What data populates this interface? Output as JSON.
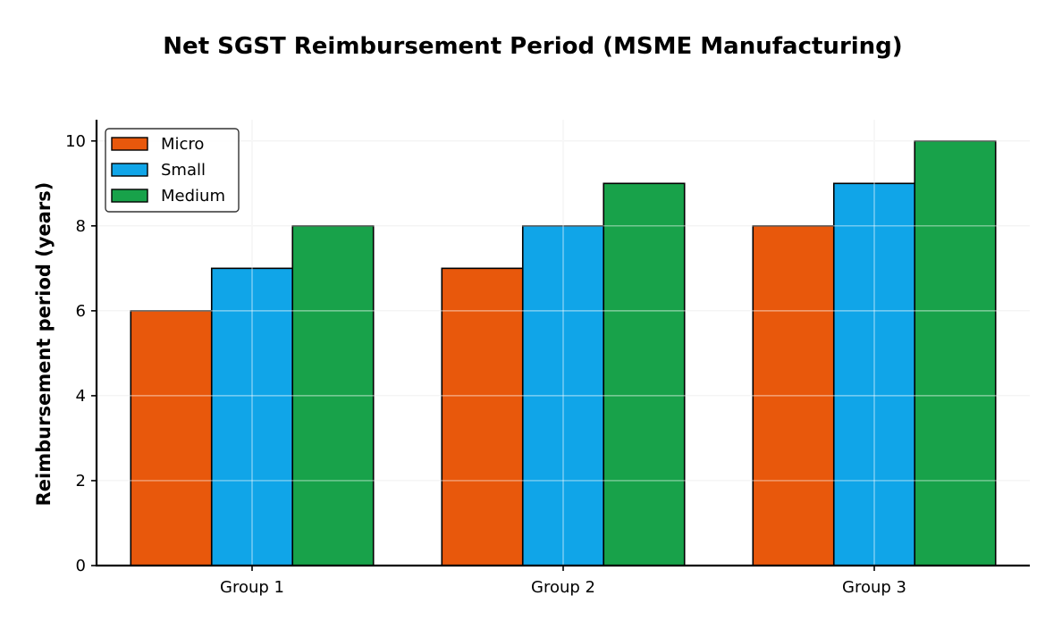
{
  "chart_data": {
    "type": "bar",
    "title": "Net SGST Reimbursement Period (MSME Manufacturing)",
    "xlabel": "",
    "ylabel": "Reimbursement period (years)",
    "categories": [
      "Group 1",
      "Group 2",
      "Group 3"
    ],
    "series": [
      {
        "name": "Micro",
        "values": [
          6,
          7,
          8
        ],
        "color": "#e8580c"
      },
      {
        "name": "Small",
        "values": [
          7,
          8,
          9
        ],
        "color": "#10a5e8"
      },
      {
        "name": "Medium",
        "values": [
          8,
          9,
          10
        ],
        "color": "#18a24a"
      }
    ],
    "ylim": [
      0,
      10.5
    ],
    "yticks": [
      0,
      2,
      4,
      6,
      8,
      10
    ],
    "grid": true,
    "legend": "top-left"
  }
}
